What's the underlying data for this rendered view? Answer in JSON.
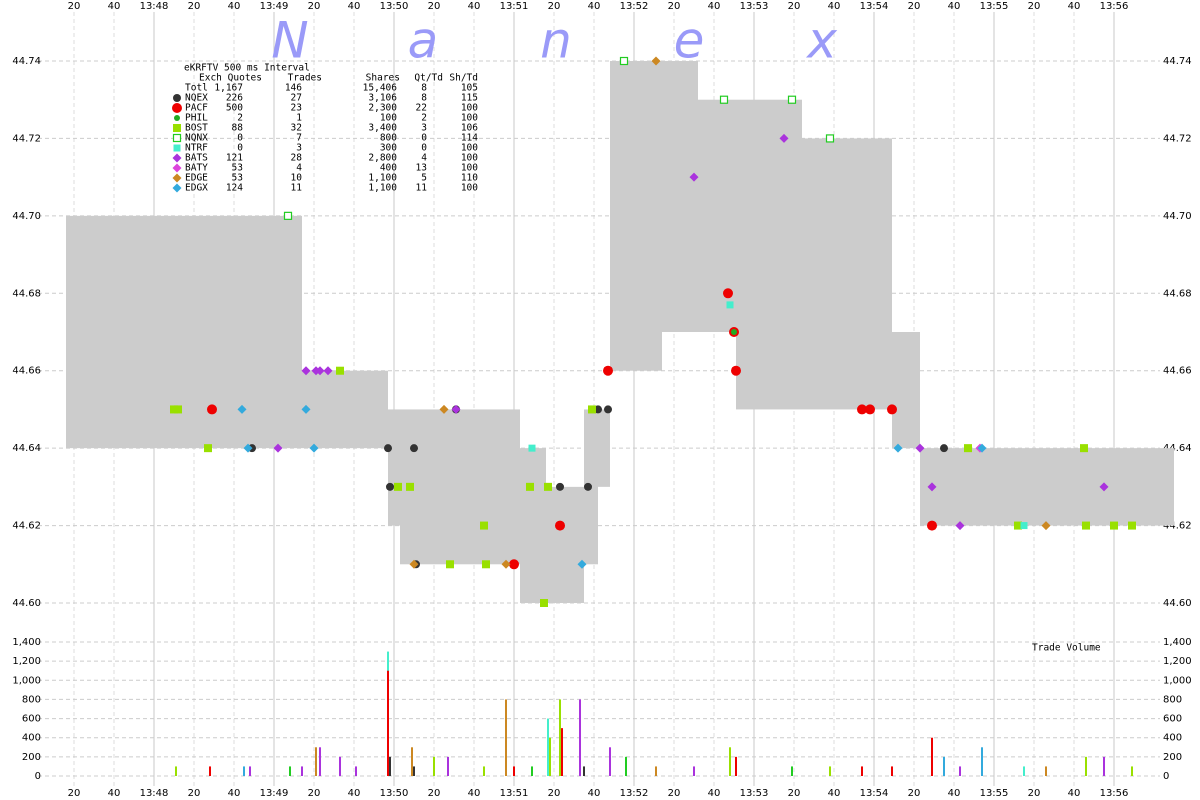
{
  "chart_data": [
    {
      "type": "scatter",
      "xlim": [
        "13:46:43",
        "13:56:43"
      ],
      "xticks": [
        {
          "value": "13:47:20",
          "label": "20"
        },
        {
          "value": "13:47:40",
          "label": "40"
        },
        {
          "value": "13:48:00",
          "label": "13:48"
        },
        {
          "value": "13:48:20",
          "label": "20"
        },
        {
          "value": "13:48:40",
          "label": "40"
        },
        {
          "value": "13:49:00",
          "label": "13:49"
        },
        {
          "value": "13:49:20",
          "label": "20"
        },
        {
          "value": "13:49:40",
          "label": "40"
        },
        {
          "value": "13:50:00",
          "label": "13:50"
        },
        {
          "value": "13:50:20",
          "label": "20"
        },
        {
          "value": "13:50:40",
          "label": "40"
        },
        {
          "value": "13:51:00",
          "label": "13:51"
        },
        {
          "value": "13:51:20",
          "label": "20"
        },
        {
          "value": "13:51:40",
          "label": "40"
        },
        {
          "value": "13:52:00",
          "label": "13:52"
        },
        {
          "value": "13:52:20",
          "label": "20"
        },
        {
          "value": "13:52:40",
          "label": "40"
        },
        {
          "value": "13:53:00",
          "label": "13:53"
        },
        {
          "value": "13:53:20",
          "label": "20"
        },
        {
          "value": "13:53:40",
          "label": "40"
        },
        {
          "value": "13:54:00",
          "label": "13:54"
        },
        {
          "value": "13:54:20",
          "label": "20"
        },
        {
          "value": "13:54:40",
          "label": "40"
        },
        {
          "value": "13:55:00",
          "label": "13:55"
        },
        {
          "value": "13:55:20",
          "label": "20"
        },
        {
          "value": "13:55:40",
          "label": "40"
        },
        {
          "value": "13:56:00",
          "label": "13:56"
        }
      ],
      "ylim": [
        44.6,
        44.74
      ],
      "yticks": [
        {
          "value": 44.6,
          "label": "44.60"
        },
        44.62,
        44.64,
        44.66,
        44.68,
        {
          "value": 44.7,
          "label": "44.70"
        },
        44.72,
        44.74
      ],
      "grid": true,
      "watermark": [
        "N",
        "a",
        "n",
        "e",
        "x"
      ],
      "band": {
        "color": "#cccccc",
        "x": [
          "13:47:16",
          "13:49:14",
          "13:49:57",
          "13:50:03",
          "13:51:03",
          "13:51:16",
          "13:51:35",
          "13:51:42",
          "13:51:48",
          "13:52:14",
          "13:52:32",
          "13:52:51",
          "13:53:24",
          "13:54:09",
          "13:54:23",
          "13:56:30"
        ],
        "low": [
          44.64,
          44.64,
          44.62,
          44.61,
          44.6,
          44.6,
          44.61,
          44.63,
          44.66,
          44.67,
          44.67,
          44.65,
          44.65,
          44.64,
          44.62,
          44.62
        ],
        "high": [
          44.7,
          44.66,
          44.65,
          44.65,
          44.64,
          44.63,
          44.65,
          44.65,
          44.74,
          44.74,
          44.73,
          44.73,
          44.72,
          44.67,
          44.64,
          44.64
        ]
      },
      "legend": {
        "title": "eKRFTV 500 ms Interval",
        "columns": [
          "Exch",
          "Quotes",
          "Trades",
          "Shares",
          "Qt/Td",
          "Sh/Td"
        ],
        "total": {
          "name": "Totl",
          "stats": [
            "1,167",
            "146",
            "15,406",
            "8",
            "105"
          ]
        }
      },
      "series": [
        {
          "name": "NQEX",
          "color": "#333333",
          "marker": "circle",
          "size": 4,
          "stats": [
            "226",
            "27",
            "3,106",
            "8",
            "115"
          ],
          "x": [
            "13:48:49",
            "13:49:57",
            "13:49:58",
            "13:50:10",
            "13:50:11",
            "13:50:31",
            "13:51:23",
            "13:51:37",
            "13:51:42",
            "13:51:47",
            "13:54:35"
          ],
          "values": [
            44.64,
            44.64,
            44.63,
            44.64,
            44.61,
            44.65,
            44.63,
            44.63,
            44.65,
            44.65,
            44.64
          ]
        },
        {
          "name": "PACF",
          "color": "#ee0000",
          "marker": "circle",
          "size": 5,
          "stats": [
            "500",
            "23",
            "2,300",
            "22",
            "100"
          ],
          "x": [
            "13:48:29",
            "13:51:00",
            "13:51:23",
            "13:51:47",
            "13:52:47",
            "13:52:50",
            "13:52:51",
            "13:53:54",
            "13:53:58",
            "13:54:09",
            "13:54:29"
          ],
          "values": [
            44.65,
            44.61,
            44.62,
            44.66,
            44.68,
            44.67,
            44.66,
            44.65,
            44.65,
            44.65,
            44.62
          ]
        },
        {
          "name": "PHIL",
          "color": "#22aa22",
          "marker": "circle",
          "size": 3,
          "stats": [
            "2",
            "1",
            "100",
            "2",
            "100"
          ],
          "x": [
            "13:52:50"
          ],
          "values": [
            44.67
          ]
        },
        {
          "name": "BOST",
          "color": "#99e000",
          "marker": "square",
          "size": 4,
          "stats": [
            "88",
            "32",
            "3,400",
            "3",
            "106"
          ],
          "x": [
            "13:48:10",
            "13:48:12",
            "13:48:27",
            "13:49:33",
            "13:50:02",
            "13:50:08",
            "13:50:28",
            "13:50:45",
            "13:50:46",
            "13:51:08",
            "13:51:15",
            "13:51:17",
            "13:51:39",
            "13:54:47",
            "13:55:12",
            "13:55:45",
            "13:55:46",
            "13:56:00",
            "13:56:09"
          ],
          "values": [
            44.65,
            44.65,
            44.64,
            44.66,
            44.63,
            44.63,
            44.61,
            44.62,
            44.61,
            44.63,
            44.6,
            44.63,
            44.65,
            44.64,
            44.62,
            44.64,
            44.62,
            44.62,
            44.62
          ]
        },
        {
          "name": "NQNX",
          "color": "#22cc22",
          "marker": "square",
          "size": 3.5,
          "open": true,
          "stats": [
            "0",
            "7",
            "800",
            "0",
            "114"
          ],
          "x": [
            "13:49:07",
            "13:51:55",
            "13:52:45",
            "13:53:19",
            "13:53:38"
          ],
          "values": [
            44.7,
            44.74,
            44.73,
            44.73,
            44.72
          ]
        },
        {
          "name": "NTRF",
          "color": "#44eecc",
          "marker": "square",
          "size": 3.5,
          "stats": [
            "0",
            "3",
            "300",
            "0",
            "100"
          ],
          "x": [
            "13:51:09",
            "13:52:48",
            "13:55:15"
          ],
          "values": [
            44.64,
            44.677,
            44.62
          ]
        },
        {
          "name": "BATS",
          "color": "#aa33dd",
          "marker": "diamond",
          "size": 4.5,
          "stats": [
            "121",
            "28",
            "2,800",
            "4",
            "100"
          ],
          "x": [
            "13:49:02",
            "13:49:16",
            "13:49:21",
            "13:49:23",
            "13:49:27",
            "13:50:31",
            "13:52:30",
            "13:53:15",
            "13:54:23",
            "13:54:29",
            "13:54:43",
            "13:55:55"
          ],
          "values": [
            44.64,
            44.66,
            44.66,
            44.66,
            44.66,
            44.65,
            44.71,
            44.72,
            44.64,
            44.63,
            44.62,
            44.63
          ]
        },
        {
          "name": "BATY",
          "color": "#dd44dd",
          "marker": "diamond",
          "size": 4.5,
          "stats": [
            "53",
            "4",
            "400",
            "13",
            "100"
          ],
          "x": [
            "13:54:53"
          ],
          "values": [
            44.64
          ]
        },
        {
          "name": "EDGE",
          "color": "#cc8822",
          "marker": "diamond",
          "size": 4.5,
          "stats": [
            "53",
            "10",
            "1,100",
            "5",
            "110"
          ],
          "x": [
            "13:50:10",
            "13:50:25",
            "13:50:56",
            "13:52:11",
            "13:55:26"
          ],
          "values": [
            44.61,
            44.65,
            44.61,
            44.74,
            44.62
          ]
        },
        {
          "name": "EDGX",
          "color": "#33aadd",
          "marker": "diamond",
          "size": 4.5,
          "stats": [
            "124",
            "11",
            "1,100",
            "11",
            "100"
          ],
          "x": [
            "13:48:44",
            "13:48:47",
            "13:49:16",
            "13:49:20",
            "13:51:34",
            "13:54:12",
            "13:54:54"
          ],
          "values": [
            44.65,
            44.64,
            44.65,
            44.64,
            44.61,
            44.64,
            44.64
          ]
        }
      ]
    },
    {
      "type": "bar",
      "title": "Trade Volume",
      "ylim": [
        0,
        1400
      ],
      "yticks": [
        0,
        200,
        400,
        600,
        800,
        {
          "value": 1000,
          "label": "1,000"
        },
        {
          "value": 1200,
          "label": "1,200"
        },
        {
          "value": 1400,
          "label": "1,400"
        }
      ],
      "grid": true,
      "x": [
        "13:48:11",
        "13:48:28",
        "13:48:45",
        "13:48:48",
        "13:49:08",
        "13:49:14",
        "13:49:21",
        "13:49:23",
        "13:49:33",
        "13:49:41",
        "13:49:57",
        "13:49:57",
        "13:49:58",
        "13:50:09",
        "13:50:10",
        "13:50:20",
        "13:50:27",
        "13:50:45",
        "13:50:56",
        "13:51:00",
        "13:51:09",
        "13:51:17",
        "13:51:18",
        "13:51:23",
        "13:51:24",
        "13:51:33",
        "13:51:35",
        "13:51:48",
        "13:51:56",
        "13:52:11",
        "13:52:30",
        "13:52:48",
        "13:52:51",
        "13:53:19",
        "13:53:38",
        "13:53:54",
        "13:54:09",
        "13:54:29",
        "13:54:35",
        "13:54:43",
        "13:54:54",
        "13:55:15",
        "13:55:26",
        "13:55:46",
        "13:55:55",
        "13:56:09"
      ],
      "values": [
        100,
        100,
        100,
        100,
        100,
        100,
        300,
        300,
        200,
        100,
        1300,
        1100,
        200,
        300,
        100,
        200,
        200,
        100,
        800,
        100,
        100,
        600,
        400,
        800,
        500,
        800,
        100,
        300,
        200,
        100,
        100,
        300,
        200,
        100,
        100,
        100,
        100,
        400,
        200,
        100,
        300,
        100,
        100,
        200,
        200,
        100
      ],
      "colors": [
        "#99e000",
        "#ee0000",
        "#33aadd",
        "#aa33dd",
        "#22cc22",
        "#aa33dd",
        "#cc8822",
        "#aa33dd",
        "#aa33dd",
        "#aa33dd",
        "#44eecc",
        "#ee0000",
        "#333333",
        "#cc8822",
        "#333333",
        "#99e000",
        "#aa33dd",
        "#99e000",
        "#cc8822",
        "#ee0000",
        "#22cc22",
        "#44eecc",
        "#99e000",
        "#99e000",
        "#ee0000",
        "#aa33dd",
        "#333333",
        "#aa33dd",
        "#22cc22",
        "#cc8822",
        "#aa33dd",
        "#99e000",
        "#ee0000",
        "#22cc22",
        "#99e000",
        "#ee0000",
        "#ee0000",
        "#ee0000",
        "#33aadd",
        "#aa33dd",
        "#33aadd",
        "#44eecc",
        "#cc8822",
        "#99e000",
        "#aa33dd",
        "#99e000"
      ]
    }
  ]
}
